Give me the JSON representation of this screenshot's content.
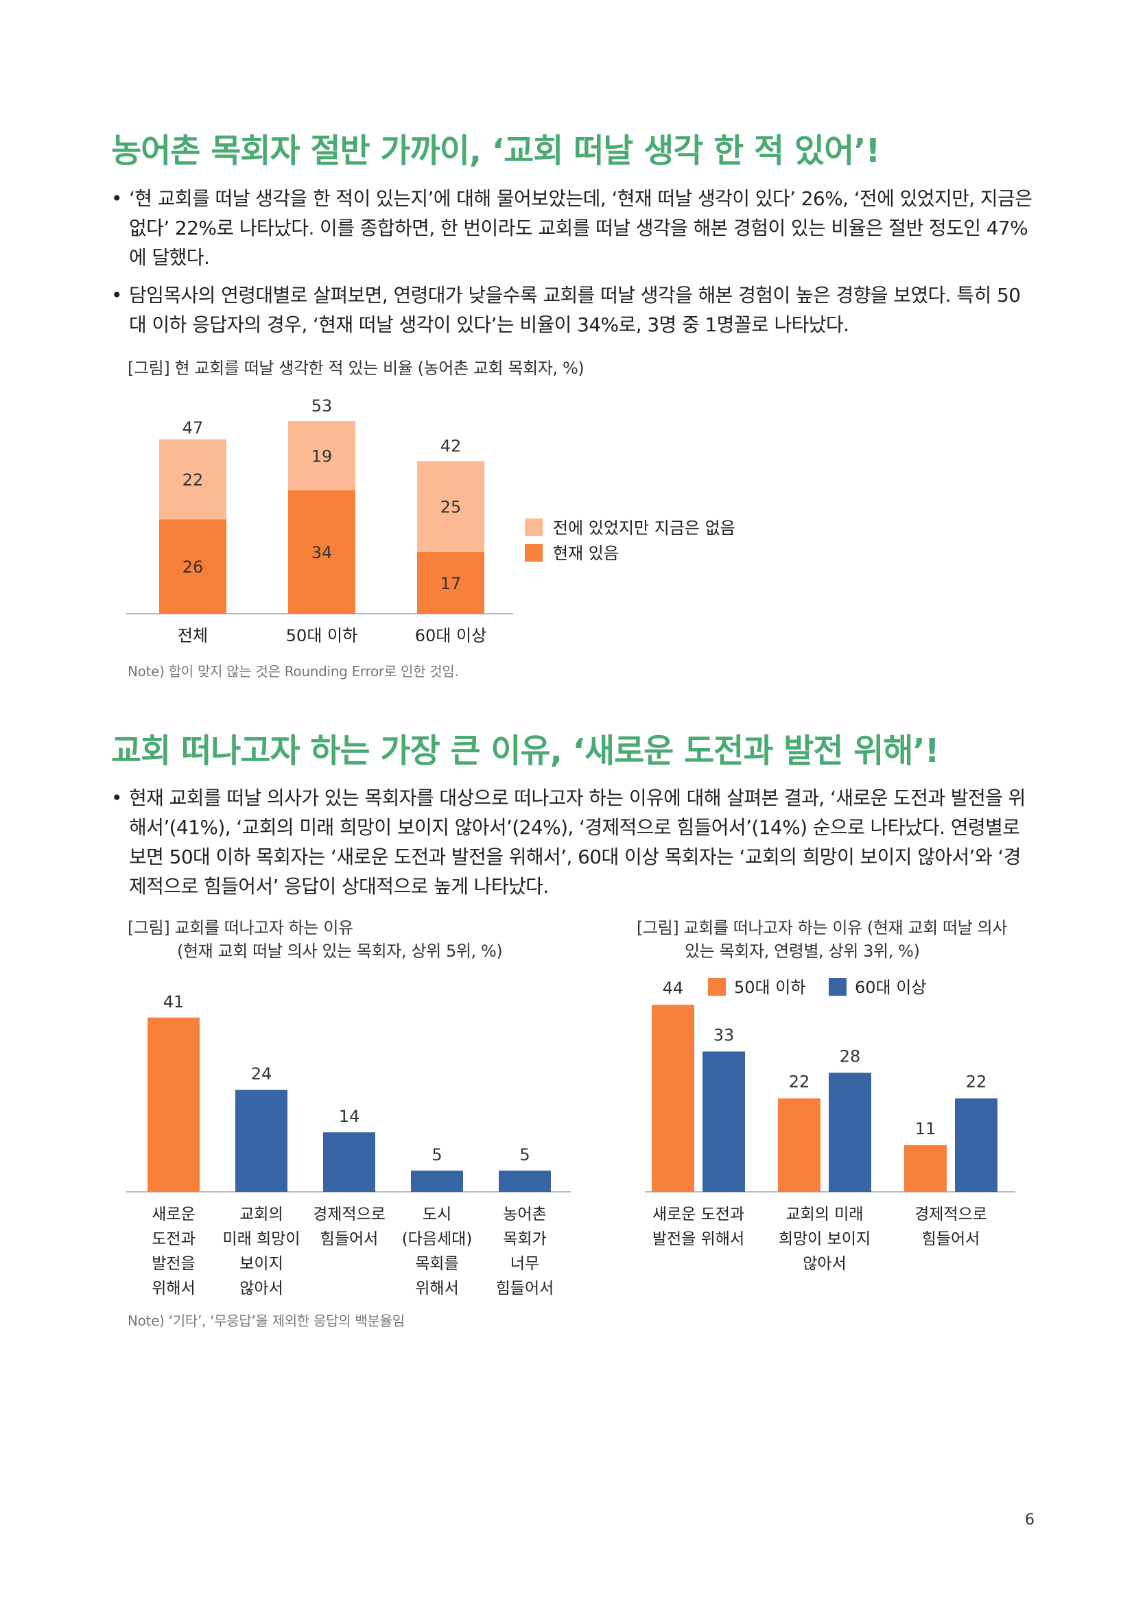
{
  "section1": {
    "heading": "농어촌 목회자 절반 가까이, ‘교회 떠날 생각 한 적 있어’!",
    "bullets": [
      "‘현 교회를 떠날 생각을 한 적이 있는지’에 대해 물어보았는데, ‘현재 떠날 생각이 있다’ 26%, ‘전에 있었지만, 지금은 없다’ 22%로 나타났다. 이를 종합하면, 한 번이라도 교회를 떠날 생각을 해본 경험이 있는 비율은 절반 정도인 47%에 달했다.",
      "담임목사의 연령대별로 살펴보면, 연령대가 낮을수록 교회를 떠날 생각을 해본 경험이 높은 경향을 보였다. 특히 50대 이하 응답자의 경우, ‘현재 떠날 생각이 있다’는 비율이 34%로, 3명 중 1명꼴로 나타났다."
    ],
    "figure_caption": "[그림] 현 교회를 떠날 생각한 적 있는 비율 (농어촌 교회 목회자, %)",
    "note": "Note) 합이 맞지 않는 것은 Rounding Error로 인한 것임."
  },
  "section2": {
    "heading": "교회 떠나고자 하는 가장 큰 이유, ‘새로운 도전과 발전 위해’!",
    "bullets": [
      "현재 교회를 떠날 의사가 있는 목회자를 대상으로 떠나고자 하는 이유에 대해 살펴본 결과, ‘새로운 도전과 발전을 위해서’(41%), ‘교회의 미래 희망이 보이지 않아서’(24%), ‘경제적으로 힘들어서’(14%) 순으로 나타났다. 연령별로 보면 50대 이하 목회자는 ‘새로운 도전과 발전을 위해서’, 60대 이상 목회자는 ‘교회의 희망이 보이지 않아서’와 ‘경제적으로 힘들어서’ 응답이 상대적으로 높게 나타났다."
    ],
    "figure2_caption": [
      "[그림] 교회를 떠나고자 하는 이유",
      "(현재 교회 떠날 의사 있는 목회자, 상위 5위, %)"
    ],
    "figure3_caption": [
      "[그림] 교회를 떠나고자 하는 이유 (현재 교회 떠날 의사",
      "있는 목회자, 연령별, 상위 3위, %)"
    ],
    "note": "Note) ‘기타’, ‘무응답’을 제외한 응답의 백분율임"
  },
  "page_number": "6",
  "colors": {
    "heading": "#4aaa72",
    "orange": "#f9803a",
    "light_orange": "#fbb994",
    "blue": "#3765a3",
    "axis": "#bbbbbb"
  },
  "chart_data": [
    {
      "type": "bar",
      "stacked": true,
      "categories": [
        "전체",
        "50대 이하",
        "60대 이상"
      ],
      "series": [
        {
          "name": "현재 있음",
          "values": [
            26,
            34,
            17
          ],
          "color": "#f9803a"
        },
        {
          "name": "전에 있었지만 지금은 없음",
          "values": [
            22,
            19,
            25
          ],
          "color": "#fbb994"
        }
      ],
      "totals": [
        47,
        53,
        42
      ],
      "legend": [
        "전에 있었지만 지금은 없음",
        "현재 있음"
      ],
      "legend_position": "right",
      "ylim": [
        0,
        53
      ]
    },
    {
      "type": "bar",
      "categories": [
        [
          "새로운",
          "도전과",
          "발전을",
          "위해서"
        ],
        [
          "교회의",
          "미래 희망이",
          "보이지",
          "않아서"
        ],
        [
          "경제적으로",
          "힘들어서"
        ],
        [
          "도시",
          "(다음세대)",
          "목회를",
          "위해서"
        ],
        [
          "농어촌",
          "목회가",
          "너무",
          "힘들어서"
        ]
      ],
      "values": [
        41,
        24,
        14,
        5,
        5
      ],
      "colors": [
        "#f9803a",
        "#3765a3",
        "#3765a3",
        "#3765a3",
        "#3765a3"
      ],
      "ylim": [
        0,
        41
      ]
    },
    {
      "type": "bar",
      "categories": [
        [
          "새로운 도전과",
          "발전을 위해서"
        ],
        [
          "교회의 미래",
          "희망이 보이지",
          "않아서"
        ],
        [
          "경제적으로",
          "힘들어서"
        ]
      ],
      "series": [
        {
          "name": "50대 이하",
          "values": [
            44,
            22,
            11
          ],
          "color": "#f9803a"
        },
        {
          "name": "60대 이상",
          "values": [
            33,
            28,
            22
          ],
          "color": "#3765a3"
        }
      ],
      "legend_position": "top",
      "ylim": [
        0,
        44
      ]
    }
  ]
}
